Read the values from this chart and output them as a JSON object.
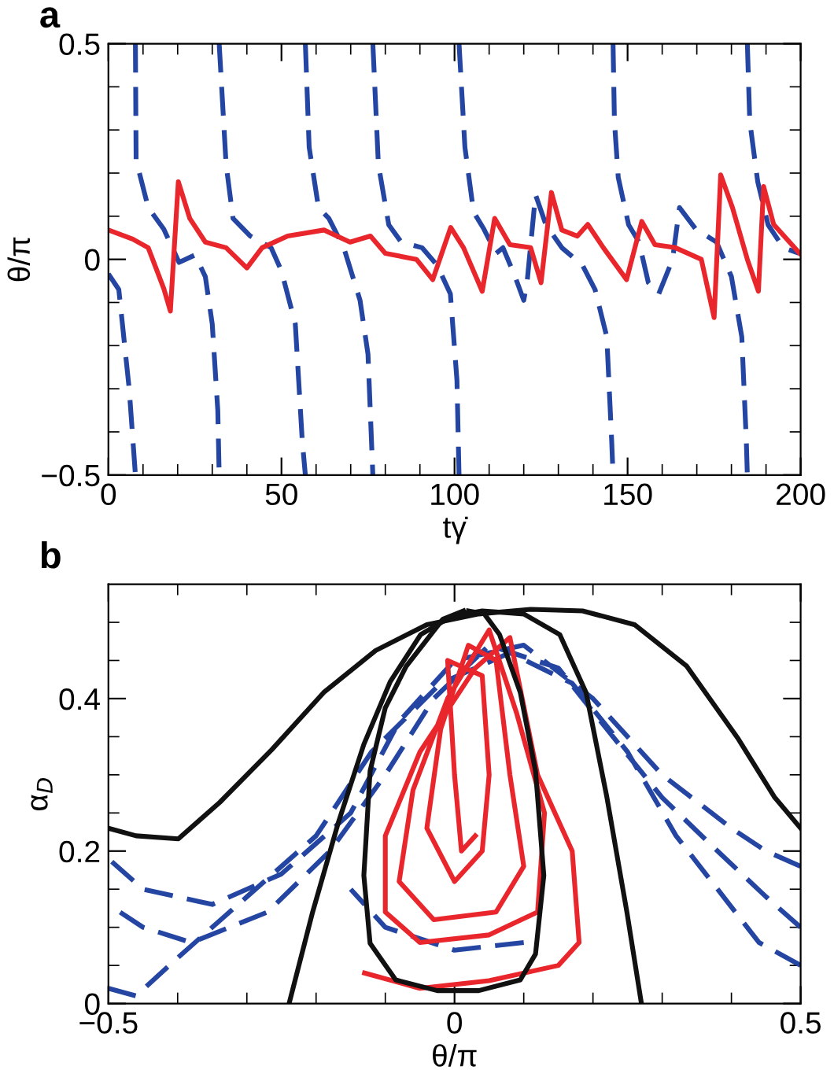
{
  "chart_data": [
    {
      "type": "line",
      "title": "a",
      "xlabel": "tγ̇",
      "ylabel": "θ/π",
      "xlim": [
        0,
        200
      ],
      "ylim": [
        -0.5,
        0.5
      ],
      "xticks": [
        0,
        {
          "value": 10,
          "label": null
        },
        {
          "value": 20,
          "label": null
        },
        {
          "value": 30,
          "label": null
        },
        {
          "value": 40,
          "label": null
        },
        50,
        {
          "value": 60,
          "label": null
        },
        {
          "value": 70,
          "label": null
        },
        {
          "value": 80,
          "label": null
        },
        {
          "value": 90,
          "label": null
        },
        100,
        {
          "value": 110,
          "label": null
        },
        {
          "value": 120,
          "label": null
        },
        {
          "value": 130,
          "label": null
        },
        {
          "value": 140,
          "label": null
        },
        150,
        {
          "value": 160,
          "label": null
        },
        {
          "value": 170,
          "label": null
        },
        {
          "value": 180,
          "label": null
        },
        {
          "value": 190,
          "label": null
        },
        200
      ],
      "yticks": [
        {
          "value": -0.5,
          "label": "−0.5"
        },
        {
          "value": -0.4,
          "label": null
        },
        {
          "value": -0.3,
          "label": null
        },
        {
          "value": -0.2,
          "label": null
        },
        {
          "value": -0.1,
          "label": null
        },
        0,
        {
          "value": 0.1,
          "label": null
        },
        {
          "value": 0.2,
          "label": null
        },
        {
          "value": 0.3,
          "label": null
        },
        {
          "value": 0.4,
          "label": null
        },
        0.5
      ],
      "grid": false,
      "legend": false,
      "series": [
        {
          "color": "#2446a2",
          "line_style": "dashed",
          "x": [
            0,
            3,
            6,
            7.8,
            null,
            7.8,
            8,
            11.5,
            16,
            20.4,
            25,
            28,
            30,
            31.6,
            32,
            null,
            32,
            33,
            34,
            36,
            41,
            47,
            50,
            54,
            56,
            56.9,
            null,
            56.9,
            58,
            60.7,
            63.7,
            68,
            72.7,
            75,
            76,
            76.4,
            null,
            76.4,
            78,
            81,
            84.6,
            90.6,
            95,
            98.8,
            100.7,
            101.3,
            null,
            101.3,
            103,
            105.5,
            108.5,
            112,
            114,
            117.5,
            120,
            121,
            123.4,
            126.4,
            131,
            137,
            140.6,
            144,
            145.4,
            145.8,
            null,
            145.8,
            146.2,
            147.3,
            150.3,
            153.3,
            156,
            159,
            163,
            165,
            169.7,
            175.7,
            180,
            183,
            184.3,
            184.6,
            null,
            184.6,
            185.3,
            187.6,
            190.6,
            195,
            199.5
          ],
          "values": [
            -0.034,
            -0.07,
            -0.3,
            -0.5,
            null,
            0.5,
            0.23,
            0.12,
            0.07,
            -0.007,
            0.01,
            -0.04,
            -0.15,
            -0.35,
            -0.5,
            null,
            0.5,
            0.36,
            0.22,
            0.095,
            0.054,
            0.027,
            -0.027,
            -0.15,
            -0.42,
            -0.5,
            null,
            0.5,
            0.26,
            0.12,
            0.095,
            0.027,
            -0.095,
            -0.22,
            -0.42,
            -0.5,
            null,
            0.5,
            0.22,
            0.08,
            0.04,
            0.027,
            -0.014,
            -0.08,
            -0.28,
            -0.5,
            null,
            0.5,
            0.26,
            0.11,
            0.07,
            0.014,
            0.027,
            -0.04,
            -0.095,
            -0.05,
            0.15,
            0.08,
            0.027,
            -0.014,
            -0.07,
            -0.18,
            -0.42,
            -0.5,
            null,
            0.5,
            0.32,
            0.19,
            0.08,
            0.04,
            -0.054,
            -0.08,
            0,
            0.12,
            0.07,
            0.04,
            -0.04,
            -0.18,
            -0.42,
            -0.5,
            null,
            0.5,
            0.32,
            0.18,
            0.08,
            0.027,
            0.014
          ]
        },
        {
          "color": "#e8262c",
          "line_style": "solid",
          "x": [
            0,
            7,
            11.5,
            16,
            17.9,
            20.2,
            23.5,
            28,
            34,
            40,
            44.4,
            51.8,
            62.3,
            69.8,
            75.7,
            80,
            89,
            93.7,
            98.9,
            102.6,
            108,
            111.6,
            116,
            122,
            125,
            128,
            131,
            135.5,
            138.5,
            143,
            149.7,
            154.1,
            157.9,
            163.8,
            171.3,
            175,
            176.9,
            180.3,
            184.6,
            187.8,
            189.3,
            192.2,
            199.7
          ],
          "values": [
            0.068,
            0.047,
            0.027,
            -0.068,
            -0.12,
            0.18,
            0.095,
            0.04,
            0.027,
            -0.02,
            0.027,
            0.054,
            0.068,
            0.04,
            0.054,
            0.014,
            0,
            -0.047,
            0.074,
            0.027,
            -0.074,
            0.095,
            0.034,
            0.027,
            -0.054,
            0.155,
            0.068,
            0.054,
            0.081,
            0.027,
            -0.047,
            0.088,
            0.034,
            0.027,
            0,
            -0.135,
            0.196,
            0.12,
            0,
            -0.074,
            0.169,
            0.081,
            0.014
          ]
        }
      ]
    },
    {
      "type": "line",
      "title": "b",
      "xlabel": "θ/π",
      "ylabel": "α$_{D}$",
      "xlim": [
        -0.5,
        0.5
      ],
      "ylim": [
        0,
        0.55
      ],
      "xticks": [
        {
          "value": -0.5,
          "label": "−0.5"
        },
        {
          "value": -0.4,
          "label": null
        },
        {
          "value": -0.3,
          "label": null
        },
        {
          "value": -0.2,
          "label": null
        },
        {
          "value": -0.1,
          "label": null
        },
        0,
        {
          "value": 0.1,
          "label": null
        },
        {
          "value": 0.2,
          "label": null
        },
        {
          "value": 0.3,
          "label": null
        },
        {
          "value": 0.4,
          "label": null
        },
        0.5
      ],
      "yticks": [
        0,
        {
          "value": 0.05,
          "label": null
        },
        {
          "value": 0.1,
          "label": null
        },
        {
          "value": 0.15,
          "label": null
        },
        0.2,
        {
          "value": 0.25,
          "label": null
        },
        {
          "value": 0.3,
          "label": null
        },
        {
          "value": 0.35,
          "label": null
        },
        0.4,
        {
          "value": 0.45,
          "label": null
        },
        {
          "value": 0.5,
          "label": null
        }
      ],
      "grid": false,
      "legend": false,
      "series": [
        {
          "color": "#2446a2",
          "line_style": "dashed",
          "x": [
            0.5,
            0.45,
            0.4,
            0.3,
            0.2,
            0.1,
            0,
            -0.08,
            -0.15,
            -0.25,
            -0.35,
            -0.45,
            -0.5,
            null,
            0.5,
            0.45,
            0.38,
            0.3,
            0.22,
            0.15,
            0.05,
            -0.03,
            -0.1,
            -0.18,
            -0.27,
            -0.38,
            -0.45,
            -0.5,
            null,
            0.5,
            0.44,
            0.38,
            0.32,
            0.25,
            0.17,
            0.08,
            -0.02,
            -0.12,
            -0.2,
            -0.3,
            -0.4,
            -0.46,
            -0.5,
            null,
            0.1,
            0,
            -0.1,
            -0.15
          ],
          "values": [
            0.18,
            0.2,
            0.23,
            0.3,
            0.4,
            0.47,
            0.45,
            0.37,
            0.25,
            0.17,
            0.13,
            0.15,
            0.19,
            null,
            0.1,
            0.14,
            0.2,
            0.27,
            0.36,
            0.44,
            0.47,
            0.4,
            0.3,
            0.2,
            0.12,
            0.08,
            0.1,
            0.13,
            null,
            0.05,
            0.08,
            0.15,
            0.22,
            0.33,
            0.42,
            0.46,
            0.42,
            0.33,
            0.22,
            0.14,
            0.06,
            0.01,
            0.02,
            null,
            0.08,
            0.07,
            0.1,
            0.15
          ]
        },
        {
          "color": "#e8262c",
          "line_style": "solid",
          "x": [
            -0.13,
            -0.05,
            0.05,
            0.15,
            0.18,
            0.17,
            0.12,
            0.08,
            0.03,
            -0.05,
            -0.1,
            -0.1,
            -0.05,
            0.05,
            0.12,
            0.13,
            0.09,
            0.05,
            -0.01,
            -0.06,
            -0.08,
            -0.03,
            0.06,
            0.1,
            0.08,
            0.06,
            0.02,
            -0.02,
            -0.04,
            0,
            0.04,
            0.05,
            0.04,
            -0.01,
            0,
            0.01,
            0.03
          ],
          "values": [
            0.04,
            0.02,
            0.03,
            0.05,
            0.08,
            0.2,
            0.3,
            0.48,
            0.44,
            0.33,
            0.22,
            0.12,
            0.08,
            0.09,
            0.12,
            0.25,
            0.38,
            0.49,
            0.4,
            0.28,
            0.16,
            0.11,
            0.12,
            0.18,
            0.3,
            0.45,
            0.47,
            0.36,
            0.23,
            0.16,
            0.2,
            0.3,
            0.43,
            0.45,
            0.3,
            0.2,
            0.22
          ]
        },
        {
          "color": "#111111",
          "line_style": "solid",
          "x": [
            -0.5,
            -0.46,
            -0.399,
            -0.339,
            -0.264,
            -0.189,
            -0.114,
            -0.04,
            0.035,
            0.11,
            0.185,
            0.26,
            0.335,
            0.41,
            0.462,
            0.5
          ],
          "values": [
            0.23,
            0.22,
            0.216,
            0.264,
            0.333,
            0.408,
            0.463,
            0.497,
            0.511,
            0.517,
            0.515,
            0.497,
            0.443,
            0.347,
            0.271,
            0.23
          ]
        },
        {
          "color": "#111111",
          "line_style": "solid",
          "x": [
            -0.239,
            -0.205,
            -0.168,
            -0.131,
            -0.093,
            -0.049,
            -0.004,
            0.04,
            0.1,
            0.152,
            0.19,
            0.22,
            0.249,
            0.27
          ],
          "values": [
            0,
            0.12,
            0.237,
            0.34,
            0.422,
            0.484,
            0.508,
            0.515,
            0.511,
            0.484,
            0.408,
            0.271,
            0.12,
            0
          ]
        },
        {
          "color": "#111111",
          "line_style": "solid",
          "x": [
            0.013,
            -0.017,
            -0.07,
            -0.1,
            -0.122,
            -0.131,
            -0.122,
            -0.085,
            -0.025,
            0.035,
            0.095,
            0.117,
            0.129,
            0.117,
            0.095,
            0.065,
            0.043,
            0.02
          ],
          "values": [
            0.515,
            0.504,
            0.442,
            0.388,
            0.305,
            0.168,
            0.079,
            0.031,
            0.017,
            0.017,
            0.031,
            0.065,
            0.168,
            0.305,
            0.408,
            0.484,
            0.511,
            0.515
          ]
        }
      ]
    }
  ]
}
